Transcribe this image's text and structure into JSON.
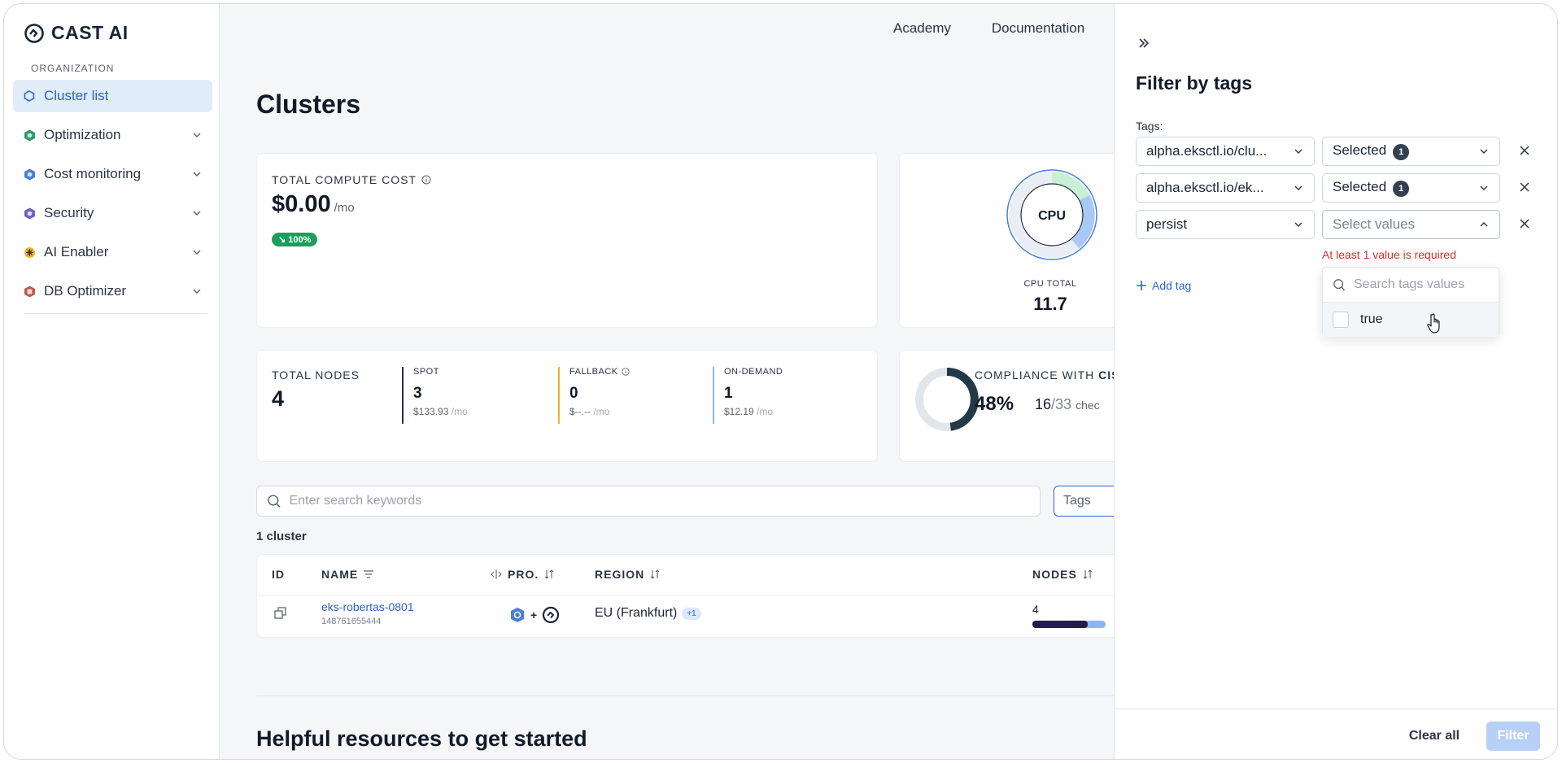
{
  "brand": {
    "name": "CAST AI"
  },
  "sidebar": {
    "section_label": "ORGANIZATION",
    "items": [
      {
        "label": "Cluster list",
        "icon": "cluster-icon",
        "active": true
      },
      {
        "label": "Optimization",
        "icon": "optimization-icon"
      },
      {
        "label": "Cost monitoring",
        "icon": "cost-monitoring-icon"
      },
      {
        "label": "Security",
        "icon": "security-icon"
      },
      {
        "label": "AI Enabler",
        "icon": "ai-enabler-icon"
      },
      {
        "label": "DB Optimizer",
        "icon": "db-optimizer-icon"
      }
    ]
  },
  "header": {
    "links": [
      "Academy",
      "Documentation"
    ]
  },
  "main": {
    "title": "Clusters",
    "cost": {
      "label": "TOTAL COMPUTE COST",
      "value": "$0.00",
      "unit": "/mo",
      "badge": "↘ 100%"
    },
    "cpu": {
      "center": "CPU",
      "total_label": "CPU TOTAL",
      "total_value": "11.7"
    },
    "nodes": {
      "total_label": "TOTAL NODES",
      "total_value": "4",
      "spot": {
        "label": "SPOT",
        "value": "3",
        "cost": "$133.93",
        "unit": "/mo"
      },
      "fallback": {
        "label": "FALLBACK",
        "value": "0",
        "cost": "$--.--",
        "unit": "/mo"
      },
      "ondemand": {
        "label": "ON-DEMAND",
        "value": "1",
        "cost": "$12.19",
        "unit": "/mo"
      }
    },
    "compliance": {
      "label_prefix": "COMPLIANCE WITH",
      "label_bold": "CIS",
      "percent": "48%",
      "passed": "16",
      "total": "/33",
      "word": "chec"
    },
    "search": {
      "placeholder": "Enter search keywords"
    },
    "tags_button": "Tags",
    "cluster_count": "1 cluster",
    "table": {
      "headers": {
        "id": "ID",
        "name": "NAME",
        "provider": "PRO.",
        "region": "REGION",
        "nodes": "NODES"
      },
      "rows": [
        {
          "name": "eks-robertas-0801",
          "account": "148761655444",
          "region": "EU (Frankfurt)",
          "region_extra": "+1",
          "nodes": "4",
          "nodes_fill": 0.75
        }
      ]
    },
    "helpful_title": "Helpful resources to get started"
  },
  "panel": {
    "title": "Filter by tags",
    "tags_label": "Tags:",
    "rows": [
      {
        "key": "alpha.eksctl.io/clu...",
        "value": "Selected",
        "count": "1"
      },
      {
        "key": "alpha.eksctl.io/ek...",
        "value": "Selected",
        "count": "1"
      },
      {
        "key": "persist",
        "value_placeholder": "Select values"
      }
    ],
    "error": "At least 1 value is required",
    "add_tag": "Add tag",
    "dropdown": {
      "search_placeholder": "Search tags values",
      "options": [
        "true"
      ]
    },
    "footer": {
      "clear": "Clear all",
      "filter": "Filter"
    }
  },
  "colors": {
    "accent": "#2c63c9",
    "error": "#d92d2d",
    "success": "#1e9e5a",
    "spot": "#2d2653",
    "fallback": "#f0b429",
    "ondemand": "#8bb6f2"
  }
}
